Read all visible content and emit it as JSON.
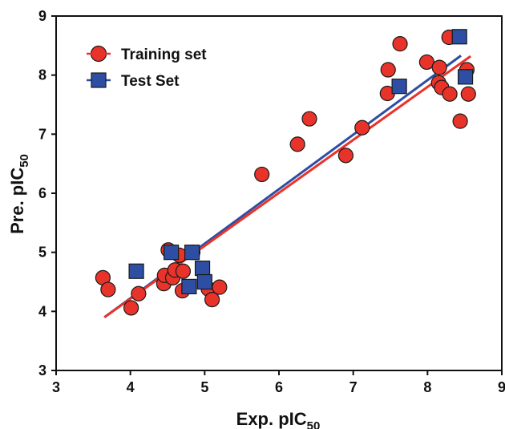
{
  "chart_data": {
    "type": "scatter",
    "xlabel": {
      "main": "Exp. pIC",
      "sub": "50"
    },
    "ylabel": {
      "main": "Pre. pIC",
      "sub": "50"
    },
    "xlim": [
      3,
      9
    ],
    "ylim": [
      3,
      9
    ],
    "xticks": [
      "3",
      "4",
      "5",
      "6",
      "7",
      "8",
      "9"
    ],
    "yticks": [
      "3",
      "4",
      "5",
      "6",
      "7",
      "8",
      "9"
    ],
    "grid": false,
    "legend_position": "top-left",
    "series": [
      {
        "name": "Training set",
        "marker": "circle",
        "color": "#e8332a",
        "points": [
          [
            3.63,
            4.57
          ],
          [
            3.7,
            4.37
          ],
          [
            4.01,
            4.06
          ],
          [
            4.11,
            4.3
          ],
          [
            4.45,
            4.47
          ],
          [
            4.46,
            4.61
          ],
          [
            4.51,
            5.04
          ],
          [
            4.57,
            4.57
          ],
          [
            4.6,
            4.7
          ],
          [
            4.66,
            4.95
          ],
          [
            4.7,
            4.35
          ],
          [
            4.71,
            4.68
          ],
          [
            4.84,
            5.0
          ],
          [
            5.05,
            4.38
          ],
          [
            5.1,
            4.2
          ],
          [
            5.2,
            4.41
          ],
          [
            5.77,
            6.32
          ],
          [
            6.25,
            6.83
          ],
          [
            6.41,
            7.26
          ],
          [
            6.9,
            6.64
          ],
          [
            7.12,
            7.11
          ],
          [
            7.46,
            7.69
          ],
          [
            7.47,
            8.09
          ],
          [
            7.63,
            8.53
          ],
          [
            7.99,
            8.22
          ],
          [
            8.15,
            7.87
          ],
          [
            8.16,
            8.13
          ],
          [
            8.19,
            7.79
          ],
          [
            8.29,
            8.64
          ],
          [
            8.3,
            7.68
          ],
          [
            8.44,
            7.22
          ],
          [
            8.53,
            8.09
          ],
          [
            8.55,
            7.68
          ]
        ]
      },
      {
        "name": "Test Set",
        "marker": "square",
        "color": "#2e4ea3",
        "points": [
          [
            4.08,
            4.68
          ],
          [
            4.55,
            5.0
          ],
          [
            4.79,
            4.42
          ],
          [
            4.83,
            5.0
          ],
          [
            4.97,
            4.73
          ],
          [
            5.0,
            4.5
          ],
          [
            7.62,
            7.81
          ],
          [
            8.43,
            8.65
          ],
          [
            8.51,
            7.97
          ]
        ]
      }
    ],
    "fit_lines": [
      {
        "color": "#2e4ea3",
        "x": [
          3.65,
          8.45
        ],
        "y": [
          3.9,
          8.33
        ]
      },
      {
        "color": "#e8332a",
        "x": [
          3.65,
          8.58
        ],
        "y": [
          3.9,
          8.32
        ]
      }
    ]
  }
}
